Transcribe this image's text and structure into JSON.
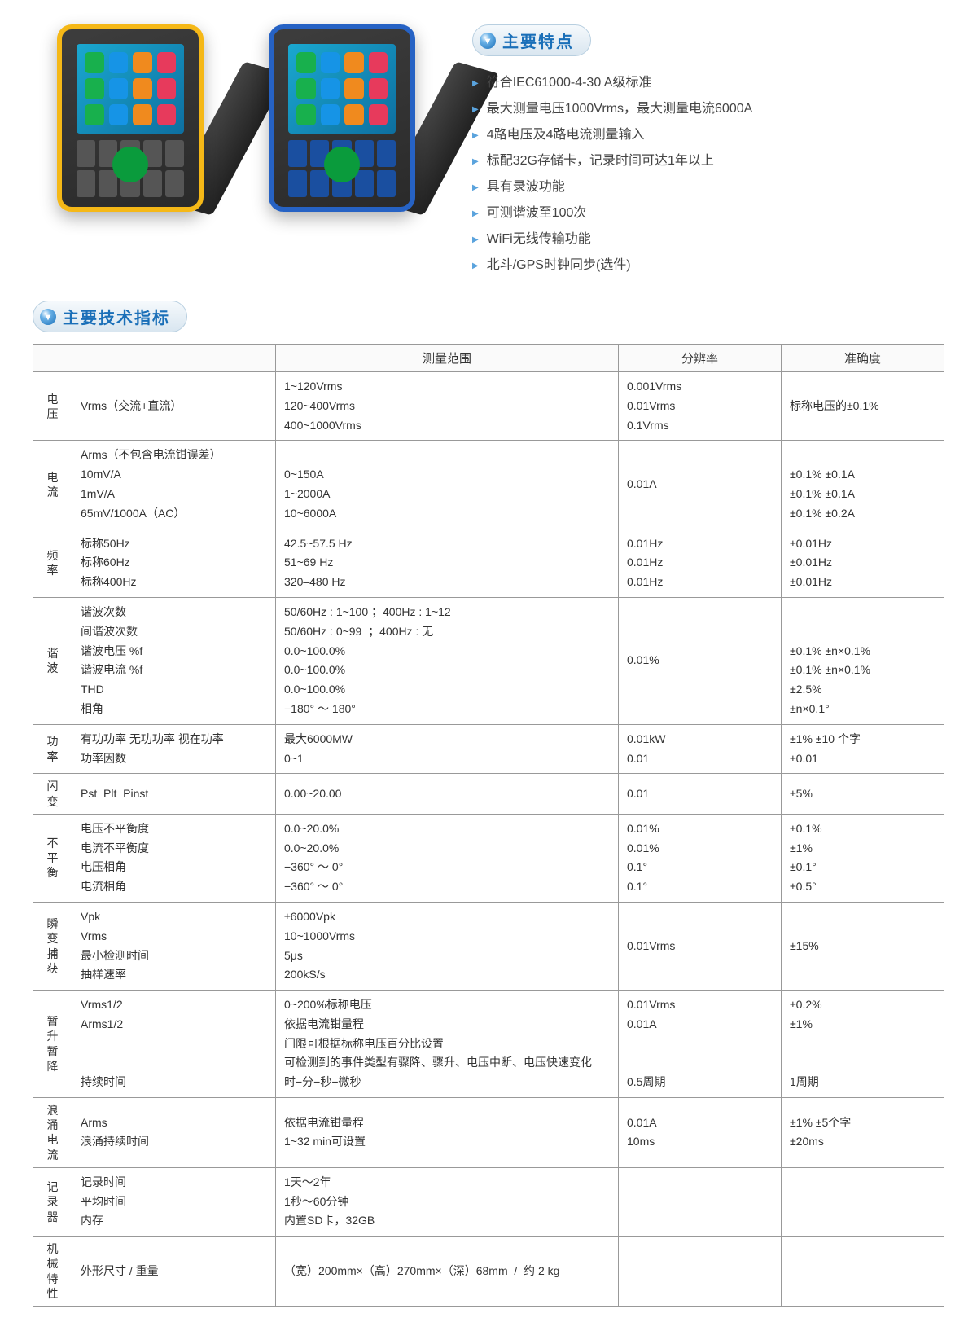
{
  "features_title": "主要特点",
  "features": [
    "符合IEC61000-4-30 A级标准",
    "最大测量电压1000Vrms，最大测量电流6000A",
    "4路电压及4路电流测量输入",
    "标配32G存储卡，记录时间可达1年以上",
    "具有录波功能",
    "可测谐波至100次",
    "WiFi无线传输功能",
    "北斗/GPS时钟同步(选件)"
  ],
  "spec_title": "主要技术指标",
  "headers": {
    "range": "测量范围",
    "resolution": "分辨率",
    "accuracy": "准确度"
  },
  "device_icon_colors": [
    "#18b04d",
    "#1694e6",
    "#f08a1e",
    "#e73a5c",
    "#18b04d",
    "#1694e6",
    "#f08a1e",
    "#e73a5c",
    "#18b04d",
    "#1694e6",
    "#f08a1e",
    "#e73a5c"
  ],
  "rows": [
    {
      "cat": "电压",
      "param": "Vrms（交流+直流）",
      "range": "1~120Vrms\n120~400Vrms\n400~1000Vrms",
      "res": "0.001Vrms\n0.01Vrms\n0.1Vrms",
      "acc": "标称电压的±0.1%"
    },
    {
      "cat": "电流",
      "param": "Arms（不包含电流钳误差）\n10mV/A\n1mV/A\n65mV/1000A（AC）",
      "range": "\n0~150A\n1~2000A\n10~6000A",
      "res": "0.01A",
      "acc": "\n±0.1% ±0.1A\n±0.1% ±0.1A\n±0.1% ±0.2A"
    },
    {
      "cat": "频率",
      "param": "标称50Hz\n标称60Hz\n标称400Hz",
      "range": "42.5~57.5 Hz\n51~69 Hz\n320–480 Hz",
      "res": "0.01Hz\n0.01Hz\n0.01Hz",
      "acc": "±0.01Hz\n±0.01Hz\n±0.01Hz"
    },
    {
      "cat": "谐波",
      "param": "谐波次数\n间谐波次数\n谐波电压 %f\n谐波电流 %f\nTHD\n相角",
      "range": "50/60Hz : 1~100 ；400Hz : 1~12\n50/60Hz : 0~99  ；400Hz : 无\n0.0~100.0%\n0.0~100.0%\n0.0~100.0%\n−180° ～ 180°",
      "res": "0.01%",
      "acc": "\n\n±0.1% ±n×0.1%\n±0.1% ±n×0.1%\n±2.5%\n±n×0.1°"
    },
    {
      "cat": "功率",
      "param": "有功功率 无功功率 视在功率\n功率因数",
      "range": "最大6000MW\n0~1",
      "res": "0.01kW\n0.01",
      "acc": "±1% ±10 个字\n±0.01"
    },
    {
      "cat": "闪变",
      "param": "Pst  Plt  Pinst",
      "range": "0.00~20.00",
      "res": "0.01",
      "acc": "±5%"
    },
    {
      "cat": "不平衡",
      "param": "电压不平衡度\n电流不平衡度\n电压相角\n电流相角",
      "range": "0.0~20.0%\n0.0~20.0%\n−360° ～ 0°\n−360° ～ 0°",
      "res": "0.01%\n0.01%\n0.1°\n0.1°",
      "acc": "±0.1%\n±1%\n±0.1°\n±0.5°"
    },
    {
      "cat": "瞬变捕获",
      "param": "Vpk\nVrms\n最小检测时间\n抽样速率",
      "range": "±6000Vpk\n10~1000Vrms\n5μs\n200kS/s",
      "res": "0.01Vrms",
      "acc": "±15%"
    },
    {
      "cat": "暂升暂降",
      "param": "Vrms1/2\nArms1/2\n\n\n持续时间",
      "range": "0~200%标称电压\n依据电流钳量程\n门限可根据标称电压百分比设置\n可检测到的事件类型有骤降、骤升、电压中断、电压快速变化\n时−分−秒−微秒",
      "res": "0.01Vrms\n0.01A\n\n\n0.5周期",
      "acc": "±0.2%\n±1%\n\n\n1周期"
    },
    {
      "cat": "浪涌电流",
      "param": "Arms\n浪涌持续时间",
      "range": "依据电流钳量程\n1~32 min可设置",
      "res": "0.01A\n10ms",
      "acc": "±1% ±5个字\n±20ms"
    },
    {
      "cat": "记录器",
      "param": "记录时间\n平均时间\n内存",
      "range": "1天～2年\n1秒～60分钟\n内置SD卡，32GB",
      "res": "",
      "acc": ""
    },
    {
      "cat": "机械特性",
      "param": "外形尺寸 / 重量",
      "range": "（宽）200mm×（高）270mm×（深）68mm  /  约 2 kg",
      "res": "",
      "acc": ""
    }
  ]
}
